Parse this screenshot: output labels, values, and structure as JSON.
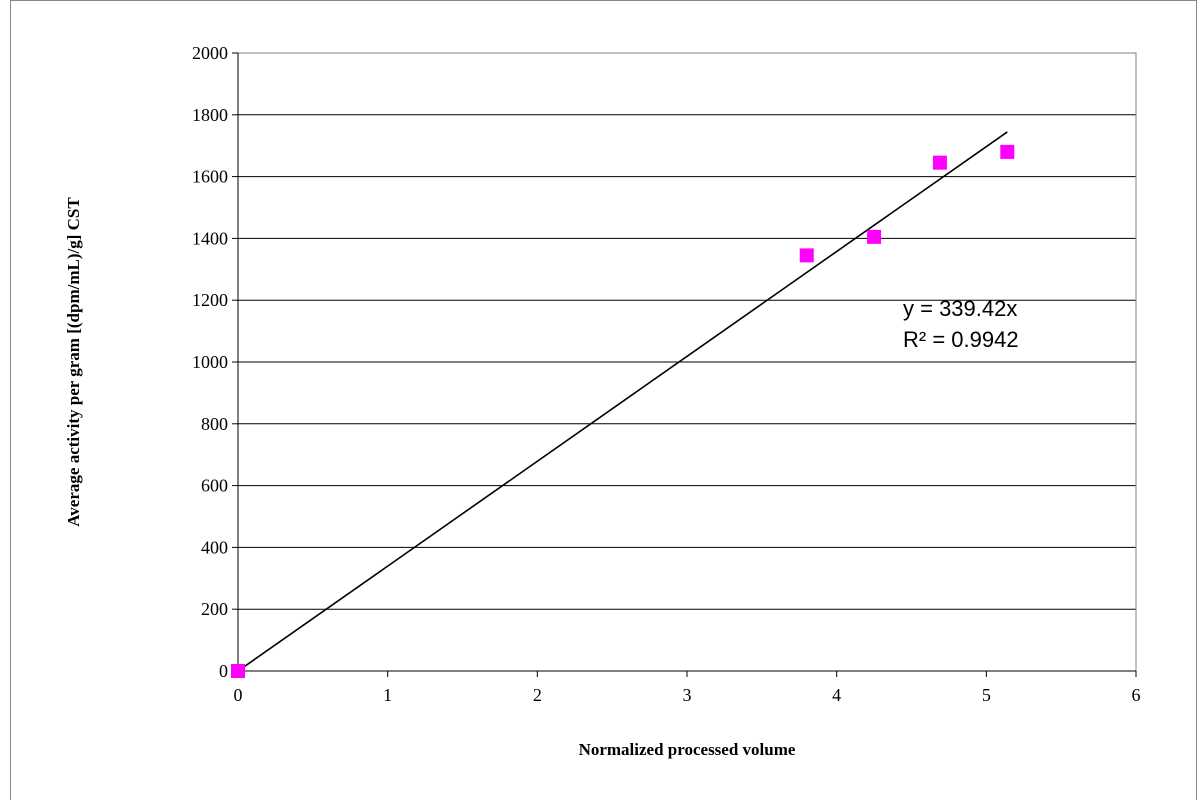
{
  "chart_data": {
    "type": "scatter",
    "title": "",
    "xlabel": "Normalized processed volume",
    "ylabel": "Average activity per gram [(dpm/mL)/g] CST",
    "xlim": [
      0,
      6
    ],
    "ylim": [
      0,
      2000
    ],
    "x_ticks": [
      "0",
      "1",
      "2",
      "3",
      "4",
      "5",
      "6"
    ],
    "y_ticks": [
      "0",
      "200",
      "400",
      "600",
      "800",
      "1000",
      "1200",
      "1400",
      "1600",
      "1800",
      "2000"
    ],
    "grid": "horizontal",
    "legend": "none",
    "series": [
      {
        "marker": "square",
        "color": "#FF00FF",
        "points": [
          {
            "x": 0,
            "y": 0
          },
          {
            "x": 3.8,
            "y": 1345
          },
          {
            "x": 4.25,
            "y": 1405
          },
          {
            "x": 4.69,
            "y": 1645
          },
          {
            "x": 5.14,
            "y": 1680
          }
        ]
      }
    ],
    "trendline": {
      "slope": 339.42,
      "intercept": 0,
      "x_range": [
        0,
        5.14
      ],
      "color": "#000000",
      "equation_label": "y = 339.42x",
      "r2_label": "R² = 0.9942"
    }
  }
}
